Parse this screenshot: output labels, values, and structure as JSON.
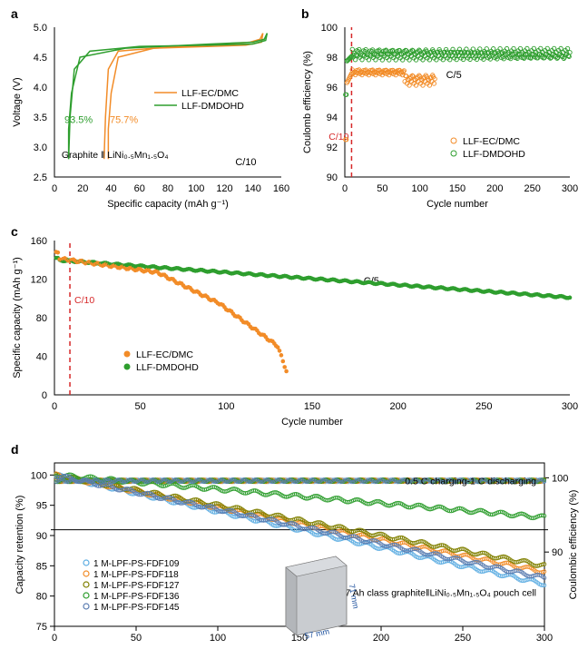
{
  "panels": {
    "a": {
      "label": "a",
      "xlabel": "Specific capacity (mAh g⁻¹)",
      "ylabel": "Voltage (V)",
      "xlim": [
        0,
        160
      ],
      "ylim": [
        2.5,
        5.0
      ],
      "xtick": 20,
      "ytick": 0.5,
      "note_cell": "Graphite ‖ LiNi₀.₅Mn₁.₅O₄",
      "note_rate": "C/10",
      "series": [
        {
          "name": "LLF-EC/DMC",
          "color": "#f28c28",
          "pct": "75.7%",
          "pct_x": 49,
          "pct_y": 3.4,
          "charge": [
            [
              38,
              2.8
            ],
            [
              38,
              3.3
            ],
            [
              40,
              3.9
            ],
            [
              45,
              4.5
            ],
            [
              70,
              4.65
            ],
            [
              120,
              4.72
            ],
            [
              138,
              4.75
            ],
            [
              145,
              4.8
            ],
            [
              147,
              4.9
            ]
          ],
          "discharge": [
            [
              147,
              4.9
            ],
            [
              146,
              4.75
            ],
            [
              135,
              4.7
            ],
            [
              110,
              4.68
            ],
            [
              70,
              4.65
            ],
            [
              45,
              4.6
            ],
            [
              38,
              4.3
            ],
            [
              36,
              3.5
            ],
            [
              35,
              2.8
            ]
          ]
        },
        {
          "name": "LLF-DMDOHD",
          "color": "#2e9e2e",
          "pct": "93.5%",
          "pct_x": 17,
          "pct_y": 3.4,
          "charge": [
            [
              10,
              2.8
            ],
            [
              10,
              3.3
            ],
            [
              12,
              3.9
            ],
            [
              18,
              4.5
            ],
            [
              50,
              4.65
            ],
            [
              110,
              4.72
            ],
            [
              140,
              4.75
            ],
            [
              148,
              4.8
            ],
            [
              150,
              4.9
            ]
          ],
          "discharge": [
            [
              150,
              4.9
            ],
            [
              149,
              4.78
            ],
            [
              140,
              4.72
            ],
            [
              110,
              4.7
            ],
            [
              60,
              4.68
            ],
            [
              25,
              4.6
            ],
            [
              14,
              4.3
            ],
            [
              11,
              3.5
            ],
            [
              10,
              2.8
            ]
          ]
        }
      ]
    },
    "b": {
      "label": "b",
      "xlabel": "Cycle number",
      "ylabel": "Coulomb efficiency (%)",
      "xlim": [
        0,
        300
      ],
      "ylim": [
        90,
        100
      ],
      "xtick": 50,
      "ytick": 2,
      "vline_x": 9,
      "vline_color": "#d62728",
      "vline_label": "C/10",
      "note_rate": "C/5",
      "series": [
        {
          "name": "LLF-EC/DMC",
          "color": "#f28c28"
        },
        {
          "name": "LLF-DMDOHD",
          "color": "#2e9e2e"
        }
      ]
    },
    "c": {
      "label": "c",
      "xlabel": "Cycle number",
      "ylabel": "Specific capacity (mAh g⁻¹)",
      "xlim": [
        0,
        300
      ],
      "ylim": [
        0,
        160
      ],
      "xtick": 50,
      "ytick": 40,
      "vline_x": 9,
      "vline_color": "#d62728",
      "vline_label": "C/10",
      "note_rate": "C/5",
      "series": [
        {
          "name": "LLF-EC/DMC",
          "color": "#f28c28"
        },
        {
          "name": "LLF-DMDOHD",
          "color": "#2e9e2e"
        }
      ]
    },
    "d": {
      "label": "d",
      "xlabel": "Cycle number",
      "ylabel": "Capacity retention (%)",
      "y2label": "Coulombic efficiency (%)",
      "xlim": [
        0,
        300
      ],
      "ylim": [
        75,
        102
      ],
      "ytick": 5,
      "y2lim": [
        80,
        102
      ],
      "y2ticks": [
        90,
        100
      ],
      "xtick": 50,
      "note_rate": "0.5 C charging-1 C discharging",
      "note_cell": "0.7 Ah class graphite‖LiNi₀.₅Mn₁.₅O₄ pouch cell",
      "pouch": {
        "w": "57 mm",
        "h": "71 mm"
      },
      "series": [
        {
          "name": "1 M-LPF-PS-FDF109",
          "color": "#5dade2",
          "end": 82
        },
        {
          "name": "1 M-LPF-PS-FDF118",
          "color": "#f28c28",
          "end": 84
        },
        {
          "name": "1 M-LPF-PS-FDF127",
          "color": "#808000",
          "end": 85
        },
        {
          "name": "1 M-LPF-PS-FDF136",
          "color": "#2e9e2e",
          "end": 93
        },
        {
          "name": "1 M-LPF-PS-FDF145",
          "color": "#5b7db1",
          "end": 83
        }
      ]
    }
  }
}
